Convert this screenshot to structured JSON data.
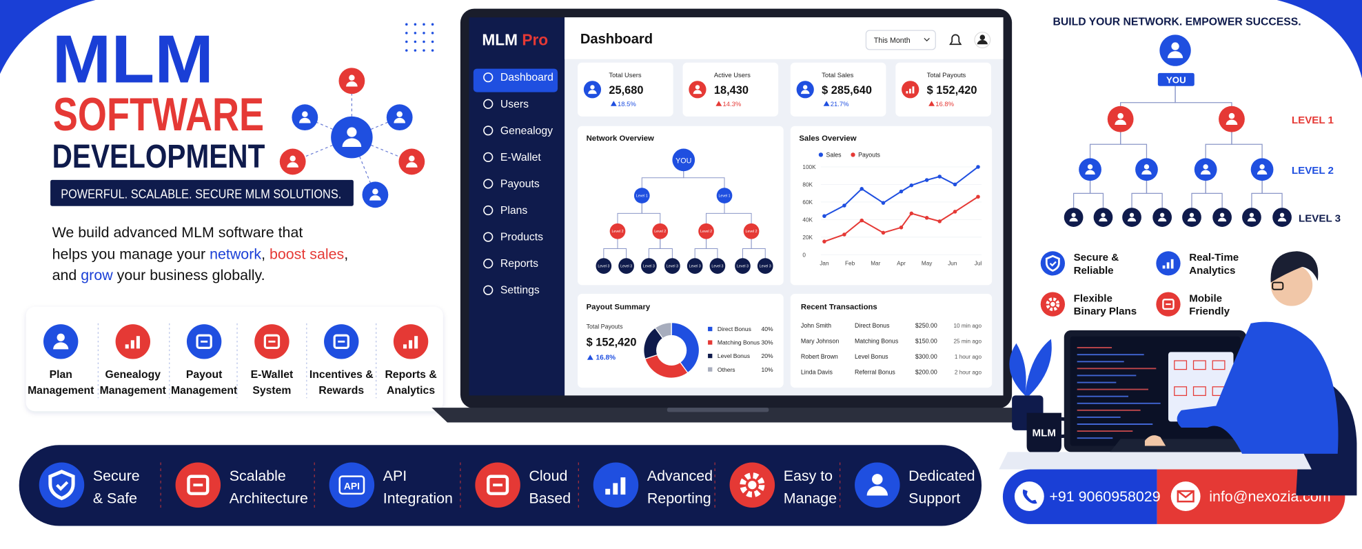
{
  "hero": {
    "title_line1": "MLM",
    "title_line2": "SOFTWARE",
    "title_line3": "DEVELOPMENT",
    "tagline": "POWERFUL. SCALABLE. SECURE MLM SOLUTIONS.",
    "description": {
      "line1": "We build advanced MLM software that",
      "line2": [
        "helps you manage your",
        "network",
        ",",
        "boost sales",
        ","
      ],
      "line3": [
        "and",
        "grow",
        "your business globally."
      ]
    }
  },
  "features": [
    [
      "Plan",
      "Management"
    ],
    [
      "Genealogy",
      "Management"
    ],
    [
      "Payout",
      "Management"
    ],
    [
      "E-Wallet",
      "System"
    ],
    [
      "Incentives &",
      "Rewards"
    ],
    [
      "Reports &",
      "Analytics"
    ]
  ],
  "dashboard": {
    "brand": [
      "MLM",
      "Pro"
    ],
    "menu": [
      "Dashboard",
      "Users",
      "Genealogy",
      "E-Wallet",
      "Payouts",
      "Plans",
      "Products",
      "Reports",
      "Settings"
    ],
    "page_title": "Dashboard",
    "period": "This Month",
    "stats": [
      {
        "label": "Total Users",
        "value": "25,680",
        "change": "18.5%"
      },
      {
        "label": "Active Users",
        "value": "18,430",
        "change": "14.3%"
      },
      {
        "label": "Total Sales",
        "value": "$ 285,640",
        "change": "21.7%"
      },
      {
        "label": "Total Payouts",
        "value": "$ 152,420",
        "change": "16.8%"
      }
    ],
    "network": {
      "title": "Network Overview",
      "root": "YOU",
      "level1": "Level 1",
      "level2": "Level 2",
      "level3": "Level 3"
    },
    "sales_chart": {
      "type": "line",
      "title": "Sales Overview",
      "x": [
        0,
        0.78,
        1.46,
        2.3,
        3,
        3.4,
        4,
        4.5,
        5.1,
        6
      ],
      "xlim": [
        0,
        6
      ],
      "xticks": [
        {
          "value": 0,
          "label": "Jan"
        },
        {
          "value": 1,
          "label": "Feb"
        },
        {
          "value": 2,
          "label": "Mar"
        },
        {
          "value": 3,
          "label": "Apr"
        },
        {
          "value": 4,
          "label": "May"
        },
        {
          "value": 5,
          "label": "Jun"
        },
        {
          "value": 6,
          "label": "Jul"
        }
      ],
      "ylim": [
        0,
        100000
      ],
      "yticks": [
        0,
        {
          "value": 20000,
          "label": "20K"
        },
        {
          "value": 40000,
          "label": "40K"
        },
        {
          "value": 60000,
          "label": "60K"
        },
        {
          "value": 80000,
          "label": "80K"
        },
        {
          "value": 100000,
          "label": "100K"
        }
      ],
      "series": [
        {
          "name": "Sales",
          "color": "#1f4fe0",
          "values": [
            44000,
            56000,
            75000,
            59000,
            72000,
            79000,
            85000,
            89000,
            80000,
            100000
          ]
        },
        {
          "name": "Payouts",
          "color": "#e53935",
          "values": [
            15000,
            23000,
            39000,
            25000,
            31000,
            47000,
            42000,
            38000,
            49000,
            66000
          ]
        }
      ]
    },
    "payout_summary": {
      "title": "Payout Summary",
      "total_label": "Total Payouts",
      "total": "$ 152,420",
      "change": "16.8%",
      "chart": {
        "type": "pie",
        "categories": [
          "Direct Bonus",
          "Matching Bonus",
          "Level Bonus",
          "Others"
        ],
        "values": [
          40,
          30,
          20,
          10
        ],
        "value_labels": [
          "40%",
          "30%",
          "20%",
          "10%"
        ],
        "colors": [
          "#1f4fe0",
          "#e53935",
          "#0f1b4c",
          "#a7adbd"
        ]
      }
    },
    "transactions": {
      "title": "Recent Transactions",
      "rows": [
        [
          "John Smith",
          "Direct Bonus",
          "$250.00",
          "10 min ago"
        ],
        [
          "Mary Johnson",
          "Matching Bonus",
          "$150.00",
          "25 min ago"
        ],
        [
          "Robert Brown",
          "Level Bonus",
          "$300.00",
          "1 hour ago"
        ],
        [
          "Linda Davis",
          "Referral Bonus",
          "$200.00",
          "2 hour ago"
        ]
      ]
    }
  },
  "network_panel": {
    "title": "BUILD YOUR NETWORK. EMPOWER SUCCESS.",
    "root": "YOU",
    "levels": [
      "LEVEL 1",
      "LEVEL 2",
      "LEVEL 3"
    ],
    "features": [
      [
        "Secure &",
        "Reliable"
      ],
      [
        "Real-Time",
        "Analytics"
      ],
      [
        "Flexible",
        "Binary Plans"
      ],
      [
        "Mobile",
        "Friendly"
      ]
    ],
    "mug_label": "MLM"
  },
  "bottom_bar": {
    "items": [
      {
        "lines": [
          "Secure",
          "& Safe"
        ]
      },
      {
        "lines": [
          "Scalable",
          "Architecture"
        ]
      },
      {
        "lines": [
          "API",
          "Integration"
        ],
        "icon_text": "API"
      },
      {
        "lines": [
          "Cloud",
          "Based"
        ]
      },
      {
        "lines": [
          "Advanced",
          "Reporting"
        ]
      },
      {
        "lines": [
          "Easy to",
          "Manage"
        ]
      },
      {
        "lines": [
          "Dedicated",
          "Support"
        ]
      }
    ]
  },
  "contact": {
    "phone": "+91 9060958029",
    "email": "info@nexozia.com"
  }
}
